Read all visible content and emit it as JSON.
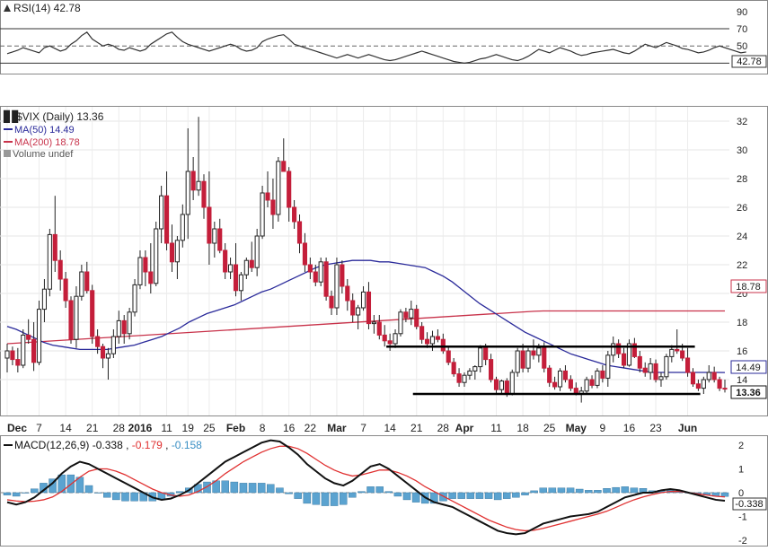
{
  "chart_data": [
    {
      "panel": "rsi",
      "type": "line",
      "legend": "RSI(14) 42.78",
      "last_value_label": "42.78",
      "ylim": [
        20,
        95
      ],
      "y_ticks": [
        "90",
        "70",
        "50",
        "30"
      ],
      "reference_lines": [
        70,
        30
      ],
      "midline": 50,
      "colors": {
        "line": "#333333",
        "ref": "#333333"
      },
      "values": [
        41,
        43,
        45,
        48,
        46,
        44,
        42,
        48,
        50,
        47,
        44,
        46,
        52,
        56,
        62,
        66,
        58,
        54,
        50,
        52,
        50,
        46,
        45,
        48,
        46,
        44,
        46,
        52,
        56,
        60,
        64,
        66,
        60,
        55,
        52,
        50,
        48,
        46,
        44,
        46,
        48,
        50,
        52,
        50,
        46,
        44,
        45,
        48,
        55,
        58,
        60,
        62,
        63,
        58,
        52,
        50,
        48,
        46,
        44,
        42,
        40,
        38,
        36,
        38,
        40,
        38,
        36,
        38,
        40,
        38,
        36,
        34,
        33,
        34,
        36,
        38,
        40,
        42,
        44,
        42,
        40,
        38,
        36,
        34,
        32,
        31,
        30,
        31,
        33,
        35,
        36,
        38,
        40,
        38,
        36,
        34,
        33,
        35,
        38,
        42,
        46,
        44,
        42,
        45,
        48,
        46,
        44,
        41,
        39,
        40,
        42,
        43,
        44,
        45,
        46,
        44,
        42,
        41,
        44,
        48,
        52,
        50,
        48,
        51,
        54,
        52,
        50,
        47,
        46,
        44,
        42,
        43,
        45,
        48,
        50,
        48,
        46,
        44,
        42,
        43
      ]
    },
    {
      "panel": "price",
      "type": "candlestick",
      "legend": {
        "symbol": "$VIX (Daily) 13.36",
        "ma50": "MA(50) 14.49",
        "ma200": "MA(200) 18.78",
        "volume": "Volume undef"
      },
      "ylim": [
        11.5,
        33
      ],
      "y_ticks": [
        "32",
        "30",
        "28",
        "26",
        "24",
        "22",
        "20",
        "18",
        "16",
        "14"
      ],
      "x_tick_labels": [
        "Dec",
        "7",
        "14",
        "21",
        "28",
        "2016",
        "11",
        "19",
        "25",
        "Feb",
        "8",
        "16",
        "22",
        "Mar",
        "7",
        "14",
        "21",
        "28",
        "Apr",
        "11",
        "18",
        "25",
        "May",
        "9",
        "16",
        "23",
        "Jun"
      ],
      "x_tick_index": [
        0,
        6,
        11,
        16,
        21,
        25,
        30,
        34,
        38,
        43,
        48,
        53,
        57,
        62,
        67,
        72,
        77,
        82,
        86,
        92,
        97,
        102,
        107,
        112,
        117,
        122,
        128
      ],
      "bold_tick_labels": [
        "Dec",
        "2016",
        "Feb",
        "Mar",
        "Apr",
        "May",
        "Jun"
      ],
      "price_labels": {
        "ma200": "18.78",
        "ma50": "14.49",
        "last": "13.36"
      },
      "support_line": 13.0,
      "resistance_line": 16.3,
      "colors": {
        "up": "#ffffff",
        "down": "#c41e3a",
        "ma50": "#2a2a9a",
        "ma200": "#c8324a"
      },
      "ohlc": [
        [
          15.5,
          16.5,
          14.5,
          16.0
        ],
        [
          16.0,
          16.3,
          15.0,
          15.4
        ],
        [
          15.4,
          16.2,
          14.5,
          15.0
        ],
        [
          15.0,
          17.5,
          14.8,
          17.1
        ],
        [
          17.1,
          18.2,
          16.5,
          16.8
        ],
        [
          16.8,
          18.0,
          14.6,
          15.2
        ],
        [
          15.2,
          19.5,
          15.0,
          18.9
        ],
        [
          18.9,
          21.0,
          18.0,
          20.3
        ],
        [
          20.3,
          24.5,
          19.8,
          24.1
        ],
        [
          24.1,
          26.8,
          21.5,
          22.3
        ],
        [
          22.3,
          23.0,
          20.2,
          21.0
        ],
        [
          21.0,
          21.5,
          19.0,
          19.5
        ],
        [
          19.5,
          19.8,
          16.5,
          16.8
        ],
        [
          16.8,
          20.5,
          16.2,
          19.8
        ],
        [
          19.8,
          22.0,
          19.5,
          21.5
        ],
        [
          21.5,
          22.2,
          20.0,
          20.2
        ],
        [
          20.2,
          20.6,
          16.5,
          17.0
        ],
        [
          17.0,
          17.5,
          15.8,
          16.3
        ],
        [
          16.3,
          16.5,
          14.8,
          15.5
        ],
        [
          15.5,
          16.2,
          14.0,
          15.8
        ],
        [
          15.8,
          17.5,
          15.5,
          17.0
        ],
        [
          17.0,
          18.8,
          16.5,
          18.1
        ],
        [
          18.1,
          18.5,
          16.5,
          17.2
        ],
        [
          17.2,
          19.0,
          16.8,
          18.7
        ],
        [
          18.7,
          21.0,
          18.4,
          20.6
        ],
        [
          20.6,
          23.0,
          20.3,
          22.5
        ],
        [
          22.5,
          23.0,
          20.5,
          21.5
        ],
        [
          21.5,
          23.5,
          20.0,
          20.7
        ],
        [
          20.7,
          25.0,
          20.5,
          24.5
        ],
        [
          24.5,
          27.5,
          23.5,
          26.8
        ],
        [
          26.8,
          28.5,
          23.0,
          23.5
        ],
        [
          23.5,
          24.8,
          21.5,
          22.2
        ],
        [
          22.2,
          24.0,
          21.0,
          23.7
        ],
        [
          23.7,
          26.2,
          23.2,
          25.5
        ],
        [
          25.5,
          31.5,
          23.8,
          28.5
        ],
        [
          28.5,
          29.5,
          26.5,
          27.2
        ],
        [
          27.2,
          32.3,
          26.8,
          27.8
        ],
        [
          27.8,
          28.3,
          25.2,
          26.0
        ],
        [
          26.0,
          28.5,
          22.0,
          23.5
        ],
        [
          23.5,
          25.0,
          22.5,
          24.5
        ],
        [
          24.5,
          25.2,
          22.8,
          23.0
        ],
        [
          23.0,
          23.5,
          21.0,
          21.5
        ],
        [
          21.5,
          22.5,
          21.0,
          22.0
        ],
        [
          22.0,
          23.5,
          19.8,
          20.2
        ],
        [
          20.2,
          21.5,
          19.5,
          21.3
        ],
        [
          21.3,
          22.5,
          21.0,
          22.3
        ],
        [
          22.3,
          23.6,
          21.5,
          21.8
        ],
        [
          21.8,
          24.5,
          21.2,
          24.0
        ],
        [
          24.0,
          27.5,
          23.8,
          27.0
        ],
        [
          27.0,
          28.5,
          26.0,
          26.5
        ],
        [
          26.5,
          28.0,
          24.5,
          25.5
        ],
        [
          25.5,
          29.5,
          25.0,
          29.2
        ],
        [
          29.2,
          30.8,
          28.5,
          28.5
        ],
        [
          28.5,
          28.8,
          25.0,
          26.0
        ],
        [
          26.0,
          26.5,
          24.5,
          25.0
        ],
        [
          25.0,
          25.5,
          22.8,
          23.5
        ],
        [
          23.5,
          24.2,
          21.5,
          22.0
        ],
        [
          22.0,
          22.5,
          21.0,
          21.5
        ],
        [
          21.5,
          22.0,
          20.5,
          20.8
        ],
        [
          20.8,
          22.5,
          20.5,
          22.2
        ],
        [
          22.2,
          22.5,
          19.5,
          19.8
        ],
        [
          19.8,
          20.2,
          18.5,
          19.0
        ],
        [
          19.0,
          22.5,
          18.5,
          22.0
        ],
        [
          22.0,
          22.3,
          20.0,
          20.5
        ],
        [
          20.5,
          21.0,
          18.8,
          19.5
        ],
        [
          19.5,
          20.0,
          18.0,
          18.5
        ],
        [
          18.5,
          19.2,
          17.5,
          19.0
        ],
        [
          19.0,
          20.5,
          18.8,
          20.1
        ],
        [
          20.1,
          20.8,
          17.5,
          17.9
        ],
        [
          17.9,
          18.5,
          17.2,
          18.0
        ],
        [
          18.0,
          18.5,
          16.8,
          17.1
        ],
        [
          17.1,
          17.8,
          16.3,
          16.7
        ],
        [
          16.7,
          17.2,
          16.0,
          16.5
        ],
        [
          16.5,
          17.5,
          16.2,
          17.2
        ],
        [
          17.2,
          18.9,
          17.0,
          18.7
        ],
        [
          18.7,
          19.0,
          18.0,
          18.3
        ],
        [
          18.3,
          19.5,
          17.8,
          18.9
        ],
        [
          18.9,
          19.2,
          17.5,
          17.7
        ],
        [
          17.7,
          18.0,
          16.5,
          16.8
        ],
        [
          16.8,
          17.3,
          16.2,
          16.5
        ],
        [
          16.5,
          17.4,
          16.0,
          17.0
        ],
        [
          17.0,
          17.5,
          16.6,
          16.8
        ],
        [
          16.8,
          17.2,
          15.8,
          16.0
        ],
        [
          16.0,
          16.3,
          15.0,
          15.2
        ],
        [
          15.2,
          15.5,
          14.2,
          14.4
        ],
        [
          14.4,
          14.8,
          13.5,
          13.8
        ],
        [
          13.8,
          14.5,
          13.5,
          14.3
        ],
        [
          14.3,
          14.8,
          14.0,
          14.6
        ],
        [
          14.6,
          15.0,
          14.0,
          14.9
        ],
        [
          14.9,
          16.4,
          14.5,
          16.2
        ],
        [
          16.2,
          16.5,
          15.0,
          15.4
        ],
        [
          15.4,
          15.8,
          13.8,
          14.0
        ],
        [
          14.0,
          14.2,
          13.0,
          13.3
        ],
        [
          13.3,
          14.0,
          13.0,
          13.9
        ],
        [
          13.9,
          14.1,
          12.8,
          13.0
        ],
        [
          13.0,
          14.7,
          12.9,
          14.5
        ],
        [
          14.5,
          16.2,
          14.2,
          16.0
        ],
        [
          16.0,
          16.5,
          14.5,
          14.8
        ],
        [
          14.8,
          16.2,
          14.5,
          16.0
        ],
        [
          16.0,
          16.8,
          15.4,
          15.7
        ],
        [
          15.7,
          16.5,
          15.2,
          16.2
        ],
        [
          16.2,
          16.6,
          14.5,
          14.8
        ],
        [
          14.8,
          15.0,
          13.5,
          13.8
        ],
        [
          13.8,
          14.2,
          13.3,
          13.5
        ],
        [
          13.5,
          14.8,
          13.2,
          14.6
        ],
        [
          14.6,
          15.0,
          13.8,
          14.0
        ],
        [
          14.0,
          14.3,
          13.2,
          13.4
        ],
        [
          13.4,
          13.8,
          12.9,
          13.0
        ],
        [
          13.0,
          13.5,
          12.4,
          13.2
        ],
        [
          13.2,
          14.2,
          13.0,
          14.0
        ],
        [
          14.0,
          14.3,
          13.4,
          13.6
        ],
        [
          13.6,
          14.8,
          13.4,
          14.6
        ],
        [
          14.6,
          15.0,
          13.8,
          14.1
        ],
        [
          14.1,
          16.0,
          13.5,
          15.7
        ],
        [
          15.7,
          17.0,
          15.2,
          16.5
        ],
        [
          16.5,
          16.8,
          15.5,
          15.8
        ],
        [
          15.8,
          16.2,
          14.8,
          15.0
        ],
        [
          15.0,
          16.8,
          14.9,
          16.5
        ],
        [
          16.5,
          16.9,
          15.5,
          15.6
        ],
        [
          15.6,
          16.0,
          14.5,
          14.8
        ],
        [
          14.8,
          15.2,
          14.2,
          14.5
        ],
        [
          14.5,
          15.5,
          14.0,
          15.1
        ],
        [
          15.1,
          15.4,
          13.8,
          14.0
        ],
        [
          14.0,
          14.5,
          13.5,
          14.2
        ],
        [
          14.2,
          15.8,
          14.0,
          15.6
        ],
        [
          15.6,
          16.4,
          15.2,
          16.1
        ],
        [
          16.1,
          17.5,
          15.8,
          16.0
        ],
        [
          16.0,
          16.5,
          15.3,
          15.5
        ],
        [
          15.5,
          16.2,
          14.2,
          14.5
        ],
        [
          14.5,
          14.8,
          13.5,
          13.7
        ],
        [
          13.7,
          14.0,
          13.2,
          13.4
        ],
        [
          13.4,
          14.2,
          13.0,
          14.0
        ],
        [
          14.0,
          15.0,
          13.8,
          14.5
        ],
        [
          14.5,
          14.9,
          13.8,
          14.0
        ],
        [
          14.0,
          14.2,
          13.2,
          13.4
        ],
        [
          13.4,
          14.0,
          13.1,
          13.36
        ]
      ],
      "ma50": [
        17.7,
        17.5,
        17.2,
        16.9,
        16.6,
        16.4,
        16.3,
        16.2,
        16.1,
        16.1,
        16.1,
        16.1,
        16.2,
        16.3,
        16.4,
        16.6,
        16.8,
        17.0,
        17.3,
        17.6,
        18.0,
        18.3,
        18.6,
        18.8,
        19.0,
        19.2,
        19.5,
        19.8,
        20.1,
        20.3,
        20.6,
        20.9,
        21.2,
        21.5,
        21.8,
        22.0,
        22.1,
        22.2,
        22.3,
        22.3,
        22.3,
        22.2,
        22.2,
        22.1,
        22.0,
        21.9,
        21.8,
        21.5,
        21.2,
        20.8,
        20.3,
        19.8,
        19.3,
        18.9,
        18.5,
        18.1,
        17.7,
        17.3,
        17.0,
        16.7,
        16.4,
        16.1,
        15.8,
        15.6,
        15.4,
        15.2,
        15.0,
        14.9,
        14.8,
        14.7,
        14.6,
        14.5,
        14.5,
        14.5,
        14.5,
        14.5,
        14.5,
        14.5,
        14.5,
        14.49
      ]
    },
    {
      "panel": "macd",
      "type": "line+histogram",
      "legend": {
        "title": "MACD(12,26,9)",
        "macd": "-0.338",
        "signal": "-0.179",
        "hist": "-0.158"
      },
      "last_value_label": "-0.338",
      "ylim": [
        -2.15,
        2.3
      ],
      "y_ticks": [
        "2",
        "1",
        "0",
        "-1",
        "-2"
      ],
      "colors": {
        "macd": "#111111",
        "signal": "#e03030",
        "hist": "#5ba3d0"
      },
      "macd": [
        -0.4,
        -0.5,
        -0.4,
        -0.2,
        0.1,
        0.4,
        0.8,
        1.1,
        1.3,
        1.2,
        1.0,
        0.8,
        0.6,
        0.4,
        0.2,
        0.0,
        -0.2,
        -0.3,
        -0.25,
        -0.1,
        0.1,
        0.4,
        0.7,
        1.0,
        1.3,
        1.5,
        1.7,
        1.9,
        2.1,
        2.2,
        2.15,
        1.9,
        1.6,
        1.2,
        0.9,
        0.6,
        0.4,
        0.3,
        0.5,
        0.8,
        1.1,
        1.2,
        1.0,
        0.7,
        0.4,
        0.1,
        -0.2,
        -0.4,
        -0.5,
        -0.6,
        -0.8,
        -1.0,
        -1.2,
        -1.4,
        -1.6,
        -1.7,
        -1.75,
        -1.7,
        -1.5,
        -1.3,
        -1.2,
        -1.1,
        -1.0,
        -0.95,
        -0.9,
        -0.8,
        -0.6,
        -0.4,
        -0.2,
        -0.1,
        0.0,
        0.0,
        0.1,
        0.15,
        0.1,
        0.0,
        -0.1,
        -0.2,
        -0.3,
        -0.338
      ],
      "signal": [
        -0.3,
        -0.35,
        -0.38,
        -0.36,
        -0.3,
        -0.18,
        0.05,
        0.35,
        0.65,
        0.9,
        1.0,
        1.0,
        0.9,
        0.75,
        0.55,
        0.35,
        0.15,
        0.0,
        -0.1,
        -0.15,
        -0.1,
        0.05,
        0.25,
        0.5,
        0.8,
        1.05,
        1.3,
        1.5,
        1.7,
        1.85,
        1.95,
        1.95,
        1.85,
        1.65,
        1.4,
        1.15,
        0.95,
        0.8,
        0.7,
        0.75,
        0.85,
        0.95,
        0.95,
        0.85,
        0.7,
        0.5,
        0.25,
        0.05,
        -0.15,
        -0.35,
        -0.55,
        -0.75,
        -0.95,
        -1.15,
        -1.3,
        -1.45,
        -1.55,
        -1.6,
        -1.58,
        -1.5,
        -1.4,
        -1.3,
        -1.2,
        -1.1,
        -1.0,
        -0.9,
        -0.78,
        -0.62,
        -0.45,
        -0.3,
        -0.18,
        -0.08,
        0.0,
        0.05,
        0.05,
        0.0,
        -0.05,
        -0.1,
        -0.15,
        -0.179
      ]
    }
  ]
}
